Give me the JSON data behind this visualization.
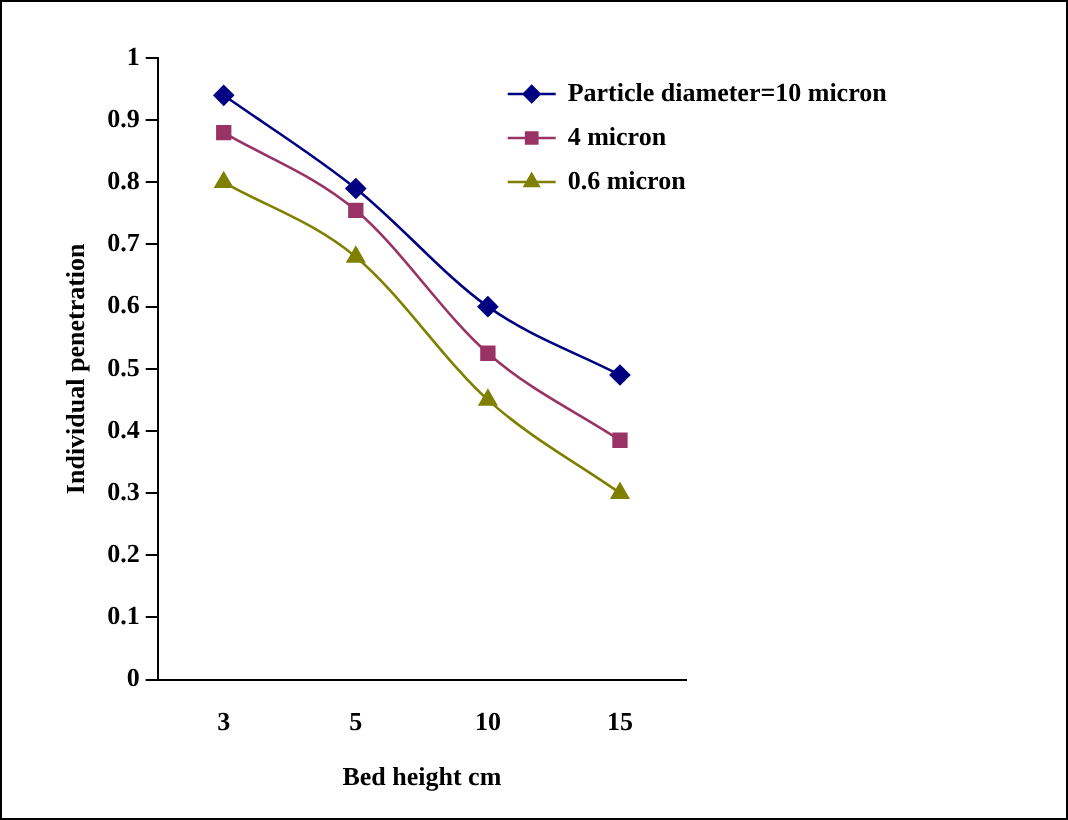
{
  "chart_data": {
    "type": "line",
    "xlabel": "Bed height cm",
    "ylabel": "Individual penetration",
    "categories": [
      "3",
      "5",
      "10",
      "15"
    ],
    "series": [
      {
        "name": "Particle diameter=10 micron",
        "color": "#000080",
        "marker": "diamond",
        "values": [
          0.94,
          0.79,
          0.6,
          0.49
        ]
      },
      {
        "name": "4 micron",
        "color": "#993366",
        "marker": "square",
        "values": [
          0.88,
          0.755,
          0.525,
          0.385
        ]
      },
      {
        "name": "0.6 micron",
        "color": "#808000",
        "marker": "triangle",
        "values": [
          0.8,
          0.68,
          0.45,
          0.3
        ]
      }
    ],
    "ylim": [
      0,
      1
    ],
    "yticks": [
      0,
      0.1,
      0.2,
      0.3,
      0.4,
      0.5,
      0.6,
      0.7,
      0.8,
      0.9,
      1
    ],
    "grid": false,
    "legend": "top right"
  }
}
